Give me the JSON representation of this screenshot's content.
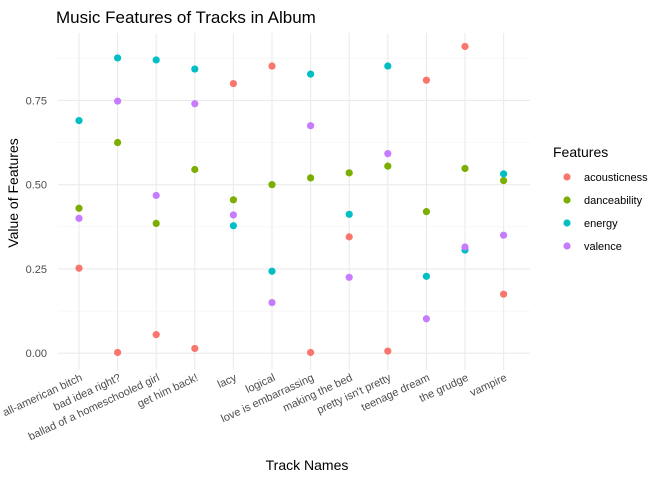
{
  "chart_data": {
    "type": "scatter",
    "title": "Music Features of Tracks in Album",
    "xlabel": "Track Names",
    "ylabel": "Value of Features",
    "ylim": [
      -0.05,
      0.95
    ],
    "y_ticks": [
      0.0,
      0.25,
      0.5,
      0.75
    ],
    "y_tick_labels": [
      "0.00",
      "0.25",
      "0.50",
      "0.75"
    ],
    "grid": true,
    "legend_title": "Features",
    "legend_position": "right",
    "categories": [
      "all-american bitch",
      "bad idea right?",
      "ballad of a homeschooled girl",
      "get him back!",
      "lacy",
      "logical",
      "love is embarrassing",
      "making the bed",
      "pretty isn't pretty",
      "teenage dream",
      "the grudge",
      "vampire"
    ],
    "series": [
      {
        "name": "acousticness",
        "color": "#F8766D",
        "values": [
          0.252,
          0.002,
          0.055,
          0.014,
          0.8,
          0.852,
          0.002,
          0.345,
          0.006,
          0.81,
          0.91,
          0.175
        ]
      },
      {
        "name": "danceability",
        "color": "#7CAE00",
        "values": [
          0.43,
          0.625,
          0.385,
          0.545,
          0.455,
          0.5,
          0.52,
          0.535,
          0.555,
          0.42,
          0.548,
          0.512
        ]
      },
      {
        "name": "energy",
        "color": "#00BFC4",
        "values": [
          0.69,
          0.876,
          0.87,
          0.843,
          0.378,
          0.243,
          0.828,
          0.412,
          0.852,
          0.228,
          0.306,
          0.532
        ]
      },
      {
        "name": "valence",
        "color": "#C77CFF",
        "values": [
          0.4,
          0.748,
          0.468,
          0.74,
          0.41,
          0.15,
          0.675,
          0.225,
          0.592,
          0.102,
          0.315,
          0.35
        ]
      }
    ]
  }
}
